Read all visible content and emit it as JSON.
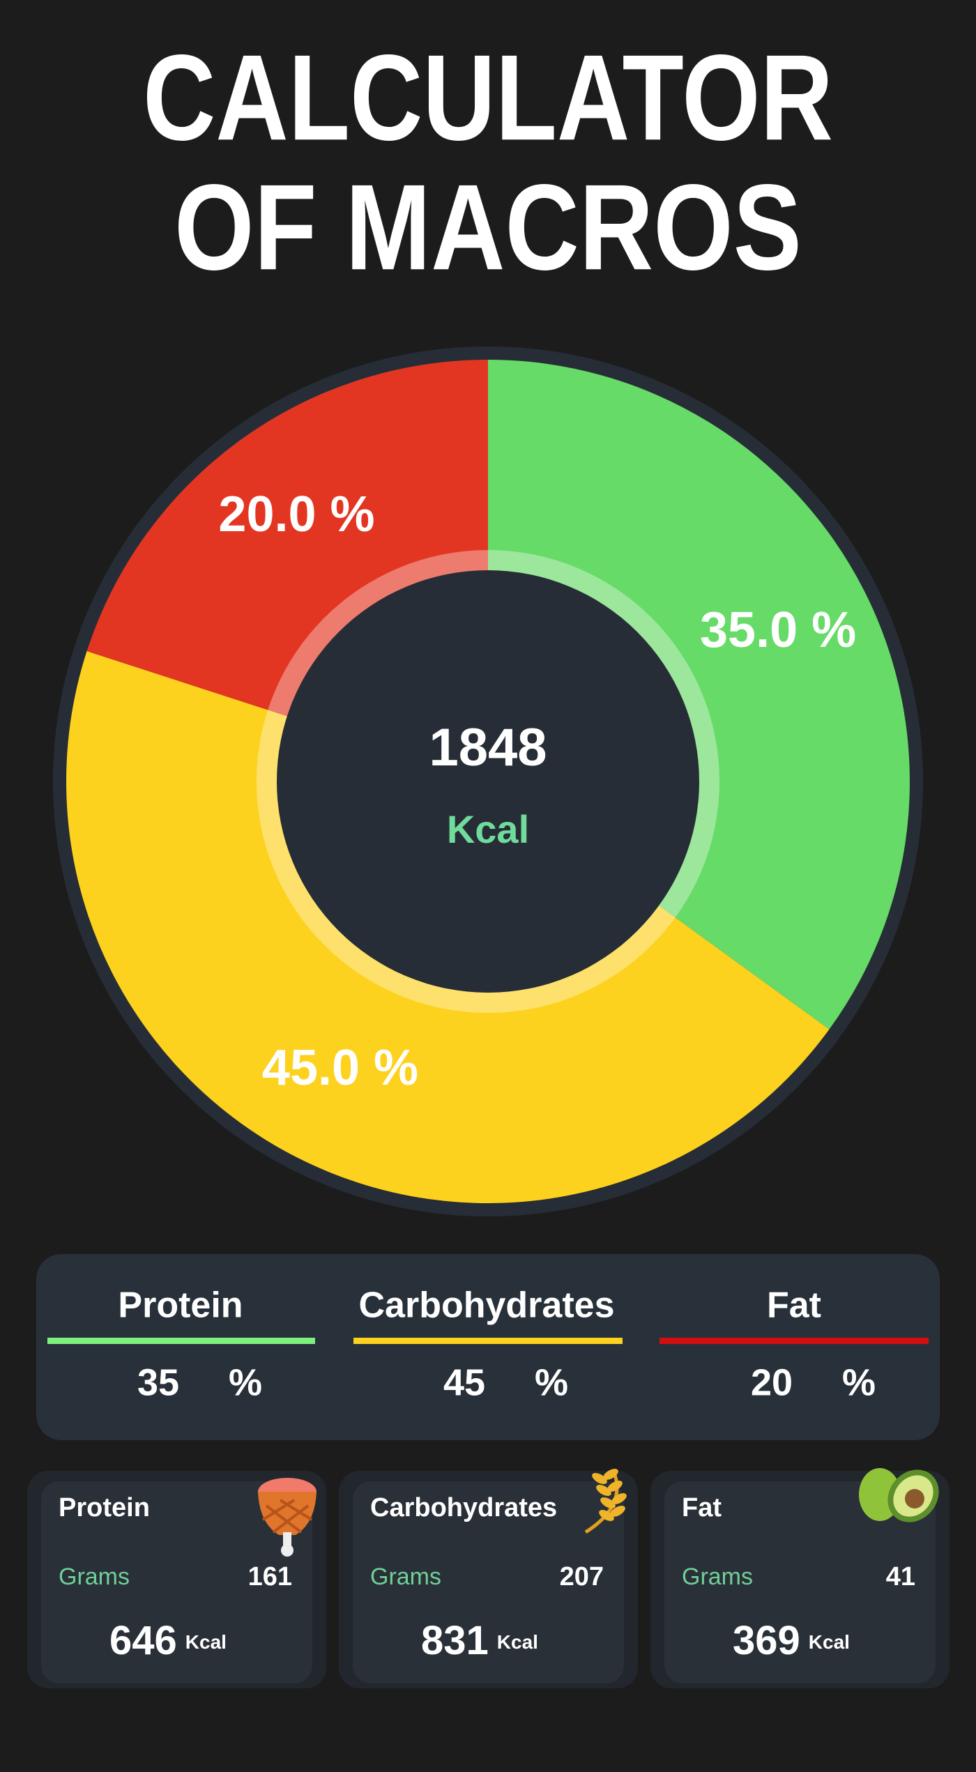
{
  "header": {
    "title_lines": [
      "CALCULATOR",
      "OF MACROS"
    ]
  },
  "chart_data": {
    "type": "donut",
    "values": [
      35,
      45,
      20
    ],
    "value_labels": [
      "35.0 %",
      "45.0 %",
      "20.0 %"
    ],
    "colors": [
      "#67db67",
      "#fdd21e",
      "#e33622"
    ],
    "center_value": 1848,
    "center_unit": "Kcal"
  },
  "macro_split": {
    "unit": "%",
    "items": [
      {
        "name": "Protein",
        "percent": 35,
        "color": "#7ef07e"
      },
      {
        "name": "Carbohydrates",
        "percent": 45,
        "color": "#fdd21e"
      },
      {
        "name": "Fat",
        "percent": 20,
        "color": "#d40e0e"
      }
    ]
  },
  "cards": {
    "grams_label": "Grams",
    "kcal_unit": "Kcal",
    "items": [
      {
        "name": "Protein",
        "grams": 161,
        "kcal": 646
      },
      {
        "name": "Carbohydrates",
        "grams": 207,
        "kcal": 831
      },
      {
        "name": "Fat",
        "grams": 41,
        "kcal": 369
      }
    ]
  }
}
